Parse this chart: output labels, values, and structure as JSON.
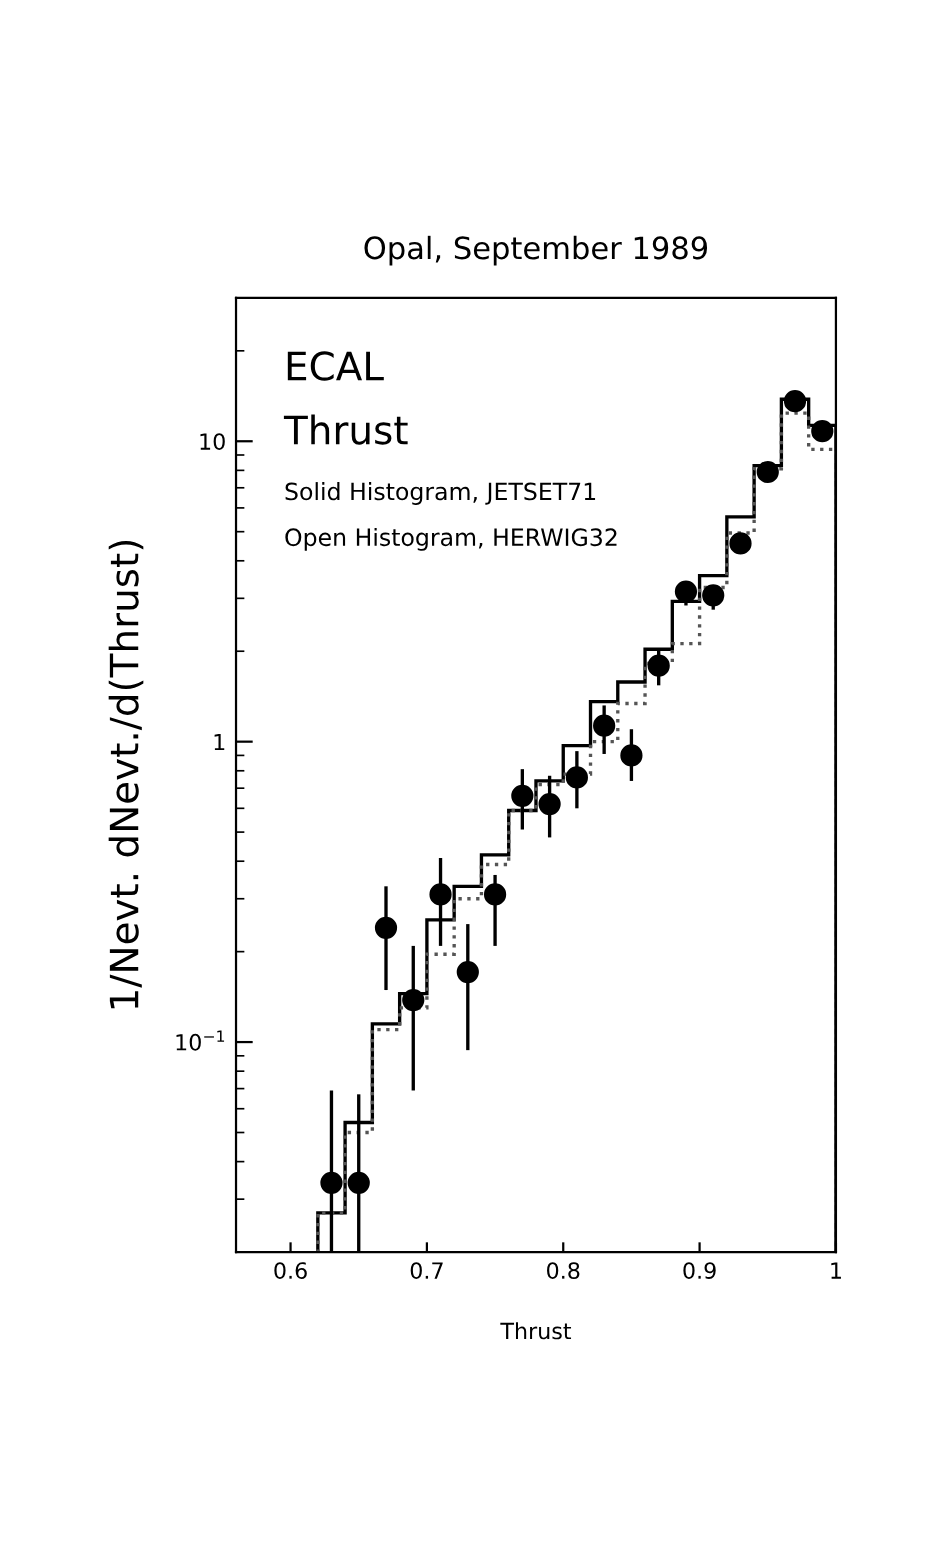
{
  "chart_data": {
    "type": "histogram",
    "title": "Opal, September 1989",
    "xlabel": "Thrust",
    "ylabel": "1/Nevt. dNevt./d(Thrust)",
    "annotations": [
      "ECAL",
      "Thrust",
      "Solid Histogram, JETSET71",
      "Open Histogram, HERWIG32"
    ],
    "bins": [
      0.62,
      0.64,
      0.66,
      0.68,
      0.7,
      0.72,
      0.74,
      0.76,
      0.78,
      0.8,
      0.82,
      0.84,
      0.86,
      0.88,
      0.9,
      0.92,
      0.94,
      0.96,
      0.98,
      1.0
    ],
    "series": [
      {
        "color": "#000000",
        "line_style": "solid",
        "values": [
          0.027,
          0.054,
          0.115,
          0.145,
          0.255,
          0.33,
          0.42,
          0.59,
          0.74,
          0.97,
          1.36,
          1.58,
          2.03,
          2.93,
          3.57,
          5.6,
          8.3,
          13.8,
          11.3
        ]
      },
      {
        "color": "#555555",
        "line_style": "dotted",
        "values": [
          0.027,
          0.05,
          0.11,
          0.13,
          0.196,
          0.3,
          0.39,
          0.59,
          0.72,
          0.78,
          1.0,
          1.34,
          1.82,
          2.12,
          3.26,
          4.95,
          8.1,
          12.4,
          9.4
        ]
      },
      {
        "type": "scatter",
        "color": "#000000",
        "marker": "circle",
        "x": [
          0.63,
          0.65,
          0.67,
          0.69,
          0.71,
          0.73,
          0.75,
          0.77,
          0.79,
          0.81,
          0.83,
          0.85,
          0.87,
          0.89,
          0.91,
          0.93,
          0.95,
          0.97,
          0.99
        ],
        "values": [
          0.034,
          0.034,
          0.24,
          0.138,
          0.31,
          0.171,
          0.31,
          0.66,
          0.62,
          0.76,
          1.13,
          0.9,
          1.79,
          3.16,
          3.07,
          4.57,
          7.9,
          13.6,
          10.8
        ],
        "errors": [
          [
            0.02,
            0.069
          ],
          [
            0.02,
            0.067
          ],
          [
            0.149,
            0.33
          ],
          [
            0.069,
            0.209
          ],
          [
            0.209,
            0.41
          ],
          [
            0.094,
            0.247
          ],
          [
            0.209,
            0.36
          ],
          [
            0.51,
            0.81
          ],
          [
            0.48,
            0.77
          ],
          [
            0.6,
            0.93
          ],
          [
            0.91,
            1.32
          ],
          [
            0.74,
            1.1
          ],
          [
            1.54,
            2.03
          ],
          [
            2.84,
            3.36
          ],
          [
            2.75,
            3.31
          ],
          null,
          null,
          null,
          null
        ]
      }
    ],
    "xlim": [
      0.56,
      1.0
    ],
    "xticks": [
      0.6,
      0.7,
      0.8,
      0.9,
      1
    ],
    "log": "y",
    "ylim": [
      0.02,
      30
    ],
    "yticks": [
      {
        "value": 0.1,
        "label": "10$^{−1}$"
      },
      1,
      10
    ],
    "grid": false,
    "legend": false
  }
}
